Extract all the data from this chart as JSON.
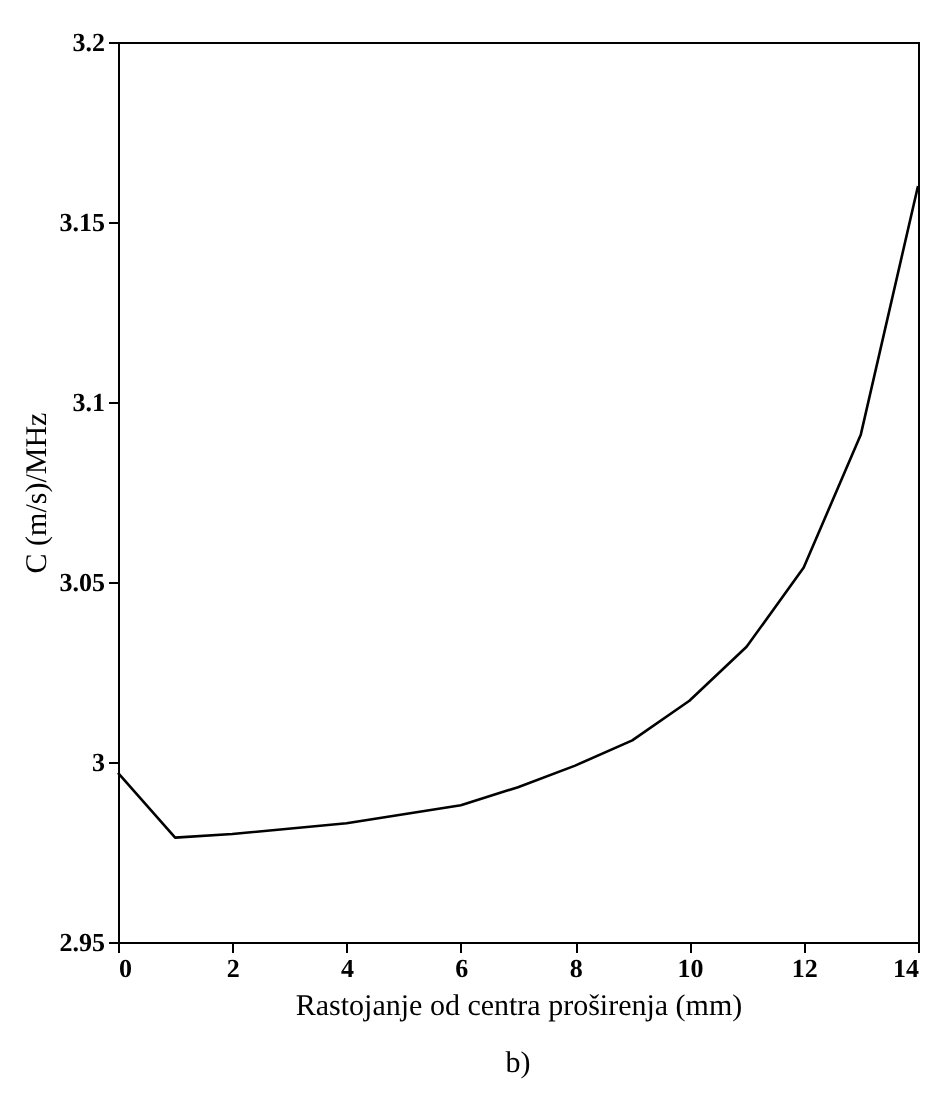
{
  "chart_data": {
    "type": "line",
    "xlabel": "Rastojanje od centra proširenja (mm)",
    "ylabel": "C (m/s)/MHz",
    "x": [
      0,
      1,
      2,
      4,
      6,
      7,
      8,
      9,
      10,
      11,
      12,
      13,
      14
    ],
    "series": [
      {
        "color": "#000000",
        "values": [
          2.997,
          2.979,
          2.98,
          2.983,
          2.988,
          2.993,
          2.999,
          3.006,
          3.017,
          3.032,
          3.054,
          3.091,
          3.16
        ]
      }
    ],
    "xlim": [
      0,
      14
    ],
    "xticks": [
      0,
      2,
      4,
      6,
      8,
      10,
      12,
      14
    ],
    "ylim": [
      2.95,
      3.2
    ],
    "yticks": [
      2.95,
      3,
      3.05,
      3.1,
      3.15,
      3.2
    ],
    "grid": false,
    "legend": false,
    "marker": "none",
    "line_style": "solid",
    "annotations": [
      "b)"
    ]
  }
}
